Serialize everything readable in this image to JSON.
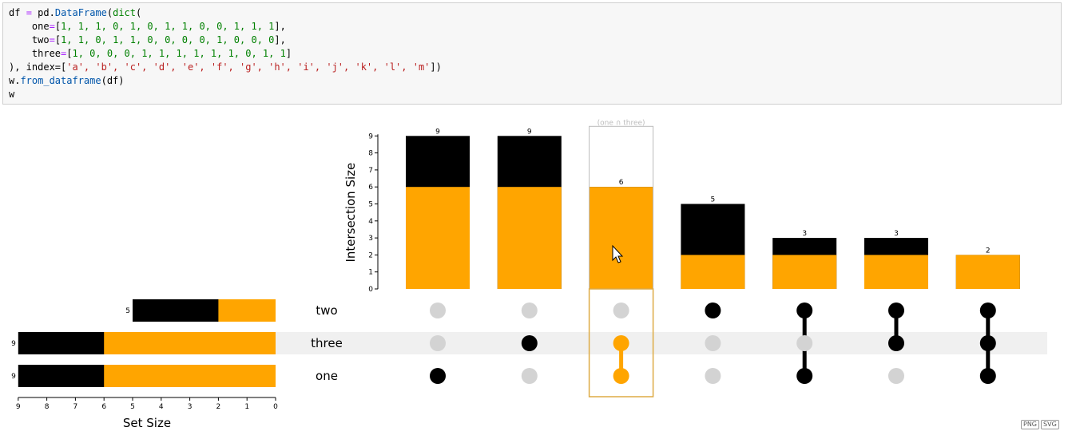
{
  "code": {
    "line1_var": "df",
    "line1_op": "=",
    "line1_call": "pd.",
    "line1_fn": "DataFrame",
    "line1_dict": "dict",
    "line2_key": "one",
    "line2_vals": "1, 1, 1, 0, 1, 0, 1, 1, 0, 0, 1, 1, 1",
    "line3_key": "two",
    "line3_vals": "1, 1, 0, 1, 1, 0, 0, 0, 0, 1, 0, 0, 0",
    "line4_key": "three",
    "line4_vals": "1, 0, 0, 0, 1, 1, 1, 1, 1, 1, 0, 1, 1",
    "line5_prefix": "), index=[",
    "line5_vals": "'a', 'b', 'c', 'd', 'e', 'f', 'g', 'h', 'i', 'j', 'k', 'l', 'm'",
    "line5_suffix": "])",
    "line6_obj": "w.",
    "line6_fn": "from_dataframe",
    "line6_arg": "(df)",
    "line7": "w"
  },
  "export": {
    "png_label": "PNG",
    "svg_label": "SVG"
  },
  "chart_data": {
    "type": "upset",
    "ylabel": "Intersection Size",
    "xlabel": "Set Size",
    "sets": [
      "two",
      "three",
      "one"
    ],
    "set_sizes": [
      5,
      9,
      9
    ],
    "set_sizes_highlighted": [
      2,
      6,
      6
    ],
    "intersections": [
      {
        "members": [
          "one"
        ],
        "size": 9,
        "highlighted": 6
      },
      {
        "members": [
          "three"
        ],
        "size": 9,
        "highlighted": 6
      },
      {
        "members": [
          "one",
          "three"
        ],
        "size": 6,
        "highlighted": 6
      },
      {
        "members": [
          "two"
        ],
        "size": 5,
        "highlighted": 2
      },
      {
        "members": [
          "two",
          "one"
        ],
        "size": 3,
        "highlighted": 2
      },
      {
        "members": [
          "two",
          "three"
        ],
        "size": 3,
        "highlighted": 2
      },
      {
        "members": [
          "two",
          "three",
          "one"
        ],
        "size": 2,
        "highlighted": 2
      }
    ],
    "selected_index": 2,
    "selection_label": "(one ∩ three)",
    "y_ticks": [
      0,
      1,
      2,
      3,
      4,
      5,
      6,
      7,
      8,
      9
    ],
    "x_ticks": [
      9,
      8,
      7,
      6,
      5,
      4,
      3,
      2,
      1,
      0
    ],
    "ylim": [
      0,
      9
    ],
    "xlim": [
      9,
      0
    ],
    "colors": {
      "bar": "#000000",
      "highlight": "#ffa500",
      "inactive_dot": "#d3d3d3",
      "alt_row": "#f0f0f0",
      "selection_box": "#ddaa44",
      "selection_label": "#bbbbbb"
    }
  }
}
